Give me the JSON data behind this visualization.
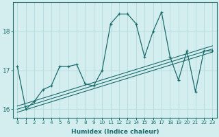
{
  "xlabel": "Humidex (Indice chaleur)",
  "ylabel": "",
  "bg_color": "#d4eef0",
  "grid_color": "#b8dde0",
  "line_color": "#1a6b6b",
  "xlim": [
    -0.5,
    23.5
  ],
  "ylim": [
    15.78,
    18.75
  ],
  "yticks": [
    16,
    17,
    18
  ],
  "xticks": [
    0,
    1,
    2,
    3,
    4,
    5,
    6,
    7,
    8,
    9,
    10,
    11,
    12,
    13,
    14,
    15,
    16,
    17,
    18,
    19,
    20,
    21,
    22,
    23
  ],
  "main_y": [
    17.1,
    16.0,
    16.2,
    16.5,
    16.6,
    17.1,
    17.1,
    17.15,
    16.65,
    16.6,
    17.0,
    18.2,
    18.45,
    18.45,
    18.2,
    17.35,
    18.0,
    18.5,
    17.35,
    16.75,
    17.5,
    16.45,
    17.5,
    17.5
  ],
  "reg1_start": 16.0,
  "reg1_end": 17.55,
  "reg2_start": 16.08,
  "reg2_end": 17.63,
  "reg3_start": 15.92,
  "reg3_end": 17.47
}
